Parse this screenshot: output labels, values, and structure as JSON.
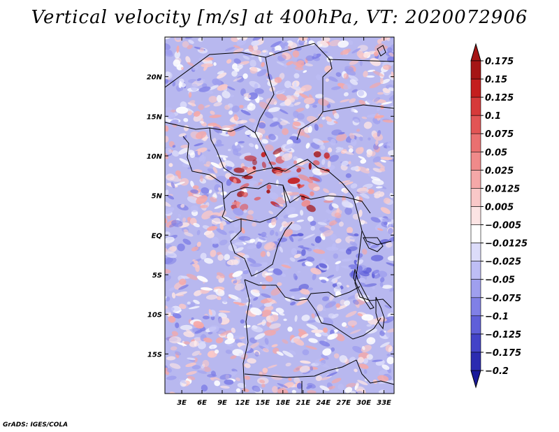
{
  "title": "Vertical velocity [m/s] at 400hPa, VT: 2020072906",
  "credit": "GrADS: IGES/COLA",
  "lat_labels": [
    {
      "text": "20N",
      "lat": 20
    },
    {
      "text": "15N",
      "lat": 15
    },
    {
      "text": "10N",
      "lat": 10
    },
    {
      "text": "5N",
      "lat": 5
    },
    {
      "text": "EQ",
      "lat": 0
    },
    {
      "text": "5S",
      "lat": -5
    },
    {
      "text": "10S",
      "lat": -10
    },
    {
      "text": "15S",
      "lat": -15
    }
  ],
  "lon_labels": [
    {
      "text": "3E",
      "lon": 3
    },
    {
      "text": "6E",
      "lon": 6
    },
    {
      "text": "9E",
      "lon": 9
    },
    {
      "text": "12E",
      "lon": 12
    },
    {
      "text": "15E",
      "lon": 15
    },
    {
      "text": "18E",
      "lon": 18
    },
    {
      "text": "21E",
      "lon": 21
    },
    {
      "text": "24E",
      "lon": 24
    },
    {
      "text": "27E",
      "lon": 27
    },
    {
      "text": "30E",
      "lon": 30
    },
    {
      "text": "33E",
      "lon": 33
    }
  ],
  "map_extent": {
    "lon_min": 0.5,
    "lon_max": 34.5,
    "lat_min": -20,
    "lat_max": 25
  },
  "colorbar": {
    "labels": [
      "0.175",
      "0.15",
      "0.125",
      "0.1",
      "0.075",
      "0.05",
      "0.025",
      "0.0125",
      "0.005",
      "−0.005",
      "−0.0125",
      "−0.025",
      "−0.05",
      "−0.075",
      "−0.1",
      "−0.125",
      "−0.175",
      "−0.2"
    ],
    "colors": [
      "#a51515",
      "#c41e1e",
      "#d63a3a",
      "#e25555",
      "#ea7070",
      "#f08a8a",
      "#f5a8a8",
      "#f9c8c8",
      "#fce4e4",
      "#ffffff",
      "#dcdcfa",
      "#bebef5",
      "#9f9fee",
      "#8080e6",
      "#5f5fd9",
      "#4343c8",
      "#2b2bb0",
      "#181890"
    ],
    "arrow_top_color": "#a51515",
    "arrow_bottom_color": "#1a1a9a"
  },
  "field_colors": {
    "base": "#b8b8ef",
    "pos": [
      "#fce4e4",
      "#f9c8c8",
      "#f5a8a8",
      "#f08a8a",
      "#e25555",
      "#c41e1e",
      "#a51515"
    ],
    "neg": [
      "#dcdcfa",
      "#bebef5",
      "#9f9fee",
      "#8080e6",
      "#5f5fd9"
    ]
  }
}
